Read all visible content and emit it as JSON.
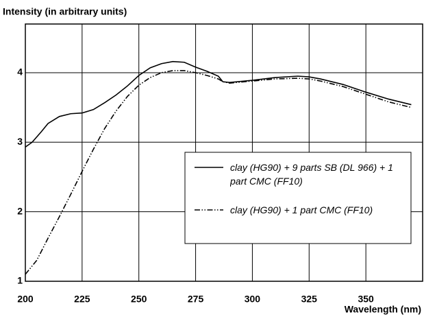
{
  "chart_data": {
    "type": "line",
    "y_label": "Intensity (in arbitrary units)",
    "x_label": "Wavelength (nm)",
    "xlim": [
      200,
      375
    ],
    "xticks": [
      200,
      225,
      250,
      275,
      300,
      325,
      350
    ],
    "ylim": [
      1,
      4.7
    ],
    "yticks": [
      1,
      2,
      3,
      4
    ],
    "grid": true,
    "legend": "right",
    "series": [
      {
        "name": "clay (HG90) + 9 parts SB (DL 966) + 1 part CMC (FF10)",
        "color": "#000000",
        "style": "solid",
        "x": [
          200,
          203,
          207,
          210,
          215,
          220,
          225,
          230,
          235,
          240,
          245,
          250,
          255,
          260,
          265,
          270,
          275,
          280,
          285,
          287,
          290,
          300,
          310,
          320,
          325,
          330,
          340,
          350,
          360,
          370
        ],
        "values": [
          2.93,
          3.0,
          3.15,
          3.27,
          3.37,
          3.41,
          3.42,
          3.47,
          3.57,
          3.68,
          3.81,
          3.96,
          4.07,
          4.13,
          4.16,
          4.15,
          4.08,
          4.02,
          3.95,
          3.87,
          3.86,
          3.89,
          3.93,
          3.95,
          3.94,
          3.91,
          3.83,
          3.72,
          3.62,
          3.54
        ]
      },
      {
        "name": "clay (HG90) + 1 part CMC (FF10)",
        "color": "#000000",
        "style": "dash-dot",
        "x": [
          200,
          205,
          210,
          215,
          220,
          225,
          230,
          235,
          240,
          245,
          250,
          255,
          260,
          265,
          270,
          275,
          280,
          285,
          287,
          290,
          300,
          310,
          320,
          325,
          330,
          340,
          350,
          360,
          370
        ],
        "values": [
          1.1,
          1.3,
          1.62,
          1.93,
          2.25,
          2.58,
          2.9,
          3.2,
          3.45,
          3.66,
          3.82,
          3.93,
          4.0,
          4.03,
          4.03,
          4.0,
          3.96,
          3.91,
          3.87,
          3.85,
          3.88,
          3.91,
          3.92,
          3.91,
          3.88,
          3.8,
          3.69,
          3.58,
          3.5
        ]
      }
    ]
  }
}
